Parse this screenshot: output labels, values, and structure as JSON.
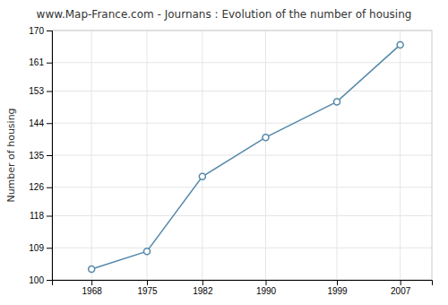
{
  "chart_data": {
    "type": "line",
    "title": "www.Map-France.com - Journans : Evolution of the number of housing",
    "ylabel": "Number of housing",
    "x": [
      1968,
      1975,
      1982,
      1990,
      1999,
      2007
    ],
    "values": [
      103,
      108,
      129,
      140,
      150,
      166
    ],
    "xlim": [
      1963,
      2011
    ],
    "ylim": [
      100,
      170
    ],
    "xticks": [
      1968,
      1975,
      1982,
      1990,
      1999,
      2007
    ],
    "yticks": [
      100,
      109,
      118,
      126,
      135,
      144,
      153,
      161,
      170
    ],
    "color": "#5588aa",
    "marker": "circle",
    "grid": true
  }
}
